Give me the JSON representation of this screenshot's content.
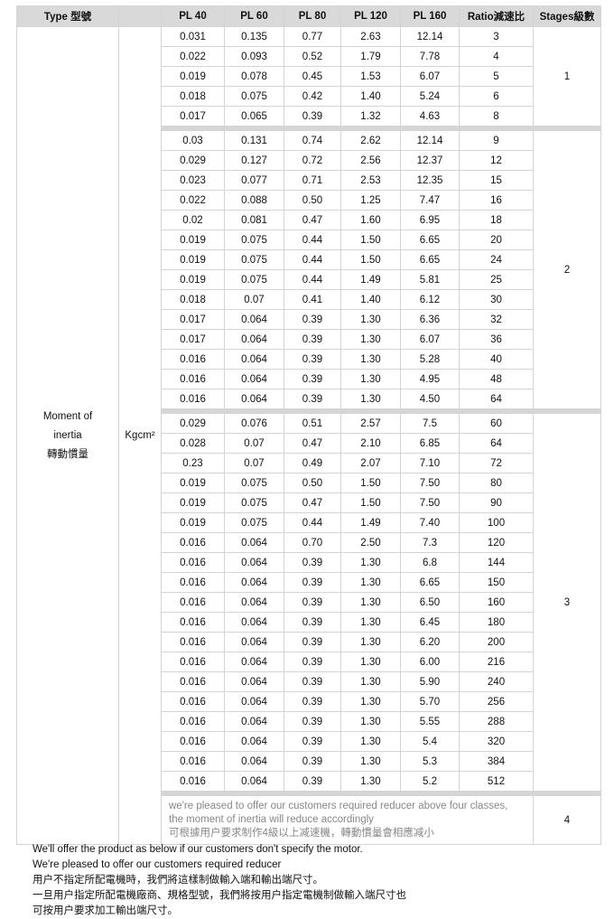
{
  "header": {
    "type": "Type 型號",
    "unit_blank": "",
    "columns": [
      "PL 40",
      "PL 60",
      "PL 80",
      "PL 120",
      "PL 160",
      "Ratio減速比",
      "Stages級數"
    ]
  },
  "type_label": [
    "Moment of",
    "inertia",
    "轉動慣量"
  ],
  "unit": "Kgcm²",
  "groups": [
    {
      "stage": "1",
      "rows": [
        [
          "0.031",
          "0.135",
          "0.77",
          "2.63",
          "12.14",
          "3"
        ],
        [
          "0.022",
          "0.093",
          "0.52",
          "1.79",
          "7.78",
          "4"
        ],
        [
          "0.019",
          "0.078",
          "0.45",
          "1.53",
          "6.07",
          "5"
        ],
        [
          "0.018",
          "0.075",
          "0.42",
          "1.40",
          "5.24",
          "6"
        ],
        [
          "0.017",
          "0.065",
          "0.39",
          "1.32",
          "4.63",
          "8"
        ]
      ]
    },
    {
      "stage": "2",
      "rows": [
        [
          "0.03",
          "0.131",
          "0.74",
          "2.62",
          "12.14",
          "9"
        ],
        [
          "0.029",
          "0.127",
          "0.72",
          "2.56",
          "12.37",
          "12"
        ],
        [
          "0.023",
          "0.077",
          "0.71",
          "2.53",
          "12.35",
          "15"
        ],
        [
          "0.022",
          "0.088",
          "0.50",
          "1.25",
          "7.47",
          "16"
        ],
        [
          "0.02",
          "0.081",
          "0.47",
          "1.60",
          "6.95",
          "18"
        ],
        [
          "0.019",
          "0.075",
          "0.44",
          "1.50",
          "6.65",
          "20"
        ],
        [
          "0.019",
          "0.075",
          "0.44",
          "1.50",
          "6.65",
          "24"
        ],
        [
          "0.019",
          "0.075",
          "0.44",
          "1.49",
          "5.81",
          "25"
        ],
        [
          "0.018",
          "0.07",
          "0.41",
          "1.40",
          "6.12",
          "30"
        ],
        [
          "0.017",
          "0.064",
          "0.39",
          "1.30",
          "6.36",
          "32"
        ],
        [
          "0.017",
          "0.064",
          "0.39",
          "1.30",
          "6.07",
          "36"
        ],
        [
          "0.016",
          "0.064",
          "0.39",
          "1.30",
          "5.28",
          "40"
        ],
        [
          "0.016",
          "0.064",
          "0.39",
          "1.30",
          "4.95",
          "48"
        ],
        [
          "0.016",
          "0.064",
          "0.39",
          "1.30",
          "4.50",
          "64"
        ]
      ]
    },
    {
      "stage": "3",
      "rows": [
        [
          "0.029",
          "0.076",
          "0.51",
          "2.57",
          "7.5",
          "60"
        ],
        [
          "0.028",
          "0.07",
          "0.47",
          "2.10",
          "6.85",
          "64"
        ],
        [
          "0.23",
          "0.07",
          "0.49",
          "2.07",
          "7.10",
          "72"
        ],
        [
          "0.019",
          "0.075",
          "0.50",
          "1.50",
          "7.50",
          "80"
        ],
        [
          "0.019",
          "0.075",
          "0.47",
          "1.50",
          "7.50",
          "90"
        ],
        [
          "0.019",
          "0.075",
          "0.44",
          "1.49",
          "7.40",
          "100"
        ],
        [
          "0.016",
          "0.064",
          "0.70",
          "2.50",
          "7.3",
          "120"
        ],
        [
          "0.016",
          "0.064",
          "0.39",
          "1.30",
          "6.8",
          "144"
        ],
        [
          "0.016",
          "0.064",
          "0.39",
          "1.30",
          "6.65",
          "150"
        ],
        [
          "0.016",
          "0.064",
          "0.39",
          "1.30",
          "6.50",
          "160"
        ],
        [
          "0.016",
          "0.064",
          "0.39",
          "1.30",
          "6.45",
          "180"
        ],
        [
          "0.016",
          "0.064",
          "0.39",
          "1.30",
          "6.20",
          "200"
        ],
        [
          "0.016",
          "0.064",
          "0.39",
          "1.30",
          "6.00",
          "216"
        ],
        [
          "0.016",
          "0.064",
          "0.39",
          "1.30",
          "5.90",
          "240"
        ],
        [
          "0.016",
          "0.064",
          "0.39",
          "1.30",
          "5.70",
          "256"
        ],
        [
          "0.016",
          "0.064",
          "0.39",
          "1.30",
          "5.55",
          "288"
        ],
        [
          "0.016",
          "0.064",
          "0.39",
          "1.30",
          "5.4",
          "320"
        ],
        [
          "0.016",
          "0.064",
          "0.39",
          "1.30",
          "5.3",
          "384"
        ],
        [
          "0.016",
          "0.064",
          "0.39",
          "1.30",
          "5.2",
          "512"
        ]
      ]
    }
  ],
  "note_row": {
    "stage": "4",
    "lines": [
      "we're pleased to offer our customers required reducer above four classes,",
      "the moment of inertia will reduce accordingly",
      "可根據用户要求制作4級以上减速機，轉動慣量會相應减小"
    ]
  },
  "footer": [
    "We'll offer the product as below if our customers don't specify the motor.",
    "We're pleased to offer our customers required reducer",
    "用户不指定所配電機時，我們將這樣制做輸入端和輸出端尺寸。",
    "一旦用户指定所配電機廠商、規格型號，我們將按用户指定電機制做輸入端尺寸也",
    "可按用户要求加工輸出端尺寸。"
  ]
}
